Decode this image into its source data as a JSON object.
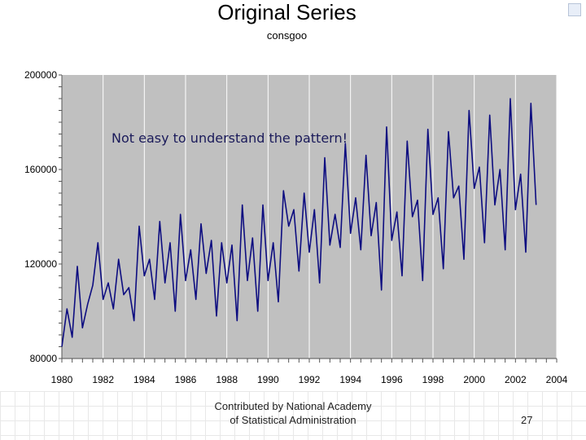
{
  "slide": {
    "title": "Original Series",
    "subtitle": "consgoo",
    "annotation": "Not easy to understand the pattern!",
    "footer_line1": "Contributed by National Academy",
    "footer_line2": "of Statistical Administration",
    "page_number": "27"
  },
  "colors": {
    "plot_background": "#c0c0c0",
    "series_line": "#0d0d80",
    "grid": "#ffffff"
  },
  "chart_data": {
    "type": "line",
    "title": "Original Series",
    "subtitle": "consgoo",
    "xlabel": "",
    "ylabel": "",
    "xlim": [
      1980,
      2004
    ],
    "ylim": [
      80000,
      200000
    ],
    "x_ticks": [
      "1980",
      "1982",
      "1984",
      "1986",
      "1988",
      "1990",
      "1992",
      "1994",
      "1996",
      "1998",
      "2000",
      "2002",
      "2004"
    ],
    "y_ticks": [
      "80000",
      "120000",
      "160000",
      "200000"
    ],
    "grid": "vertical",
    "series": [
      {
        "x_start": 1980.0,
        "frequency": "quarterly",
        "values": [
          85000,
          101000,
          89000,
          119000,
          93000,
          103000,
          111000,
          129000,
          105000,
          112000,
          101000,
          122000,
          107000,
          110000,
          96000,
          136000,
          115000,
          122000,
          105000,
          138000,
          112000,
          129000,
          100000,
          141000,
          113000,
          126000,
          105000,
          137000,
          116000,
          130000,
          98000,
          129000,
          112000,
          128000,
          96000,
          145000,
          113000,
          131000,
          100000,
          145000,
          113000,
          129000,
          104000,
          151000,
          136000,
          143000,
          117000,
          150000,
          125000,
          143000,
          112000,
          165000,
          128000,
          141000,
          127000,
          171000,
          133000,
          148000,
          126000,
          166000,
          132000,
          146000,
          109000,
          178000,
          130000,
          142000,
          115000,
          172000,
          140000,
          147000,
          113000,
          177000,
          141000,
          148000,
          118000,
          176000,
          148000,
          153000,
          122000,
          185000,
          152000,
          161000,
          129000,
          183000,
          145000,
          160000,
          126000,
          190000,
          143000,
          158000,
          125000,
          188000,
          145000
        ]
      }
    ]
  }
}
